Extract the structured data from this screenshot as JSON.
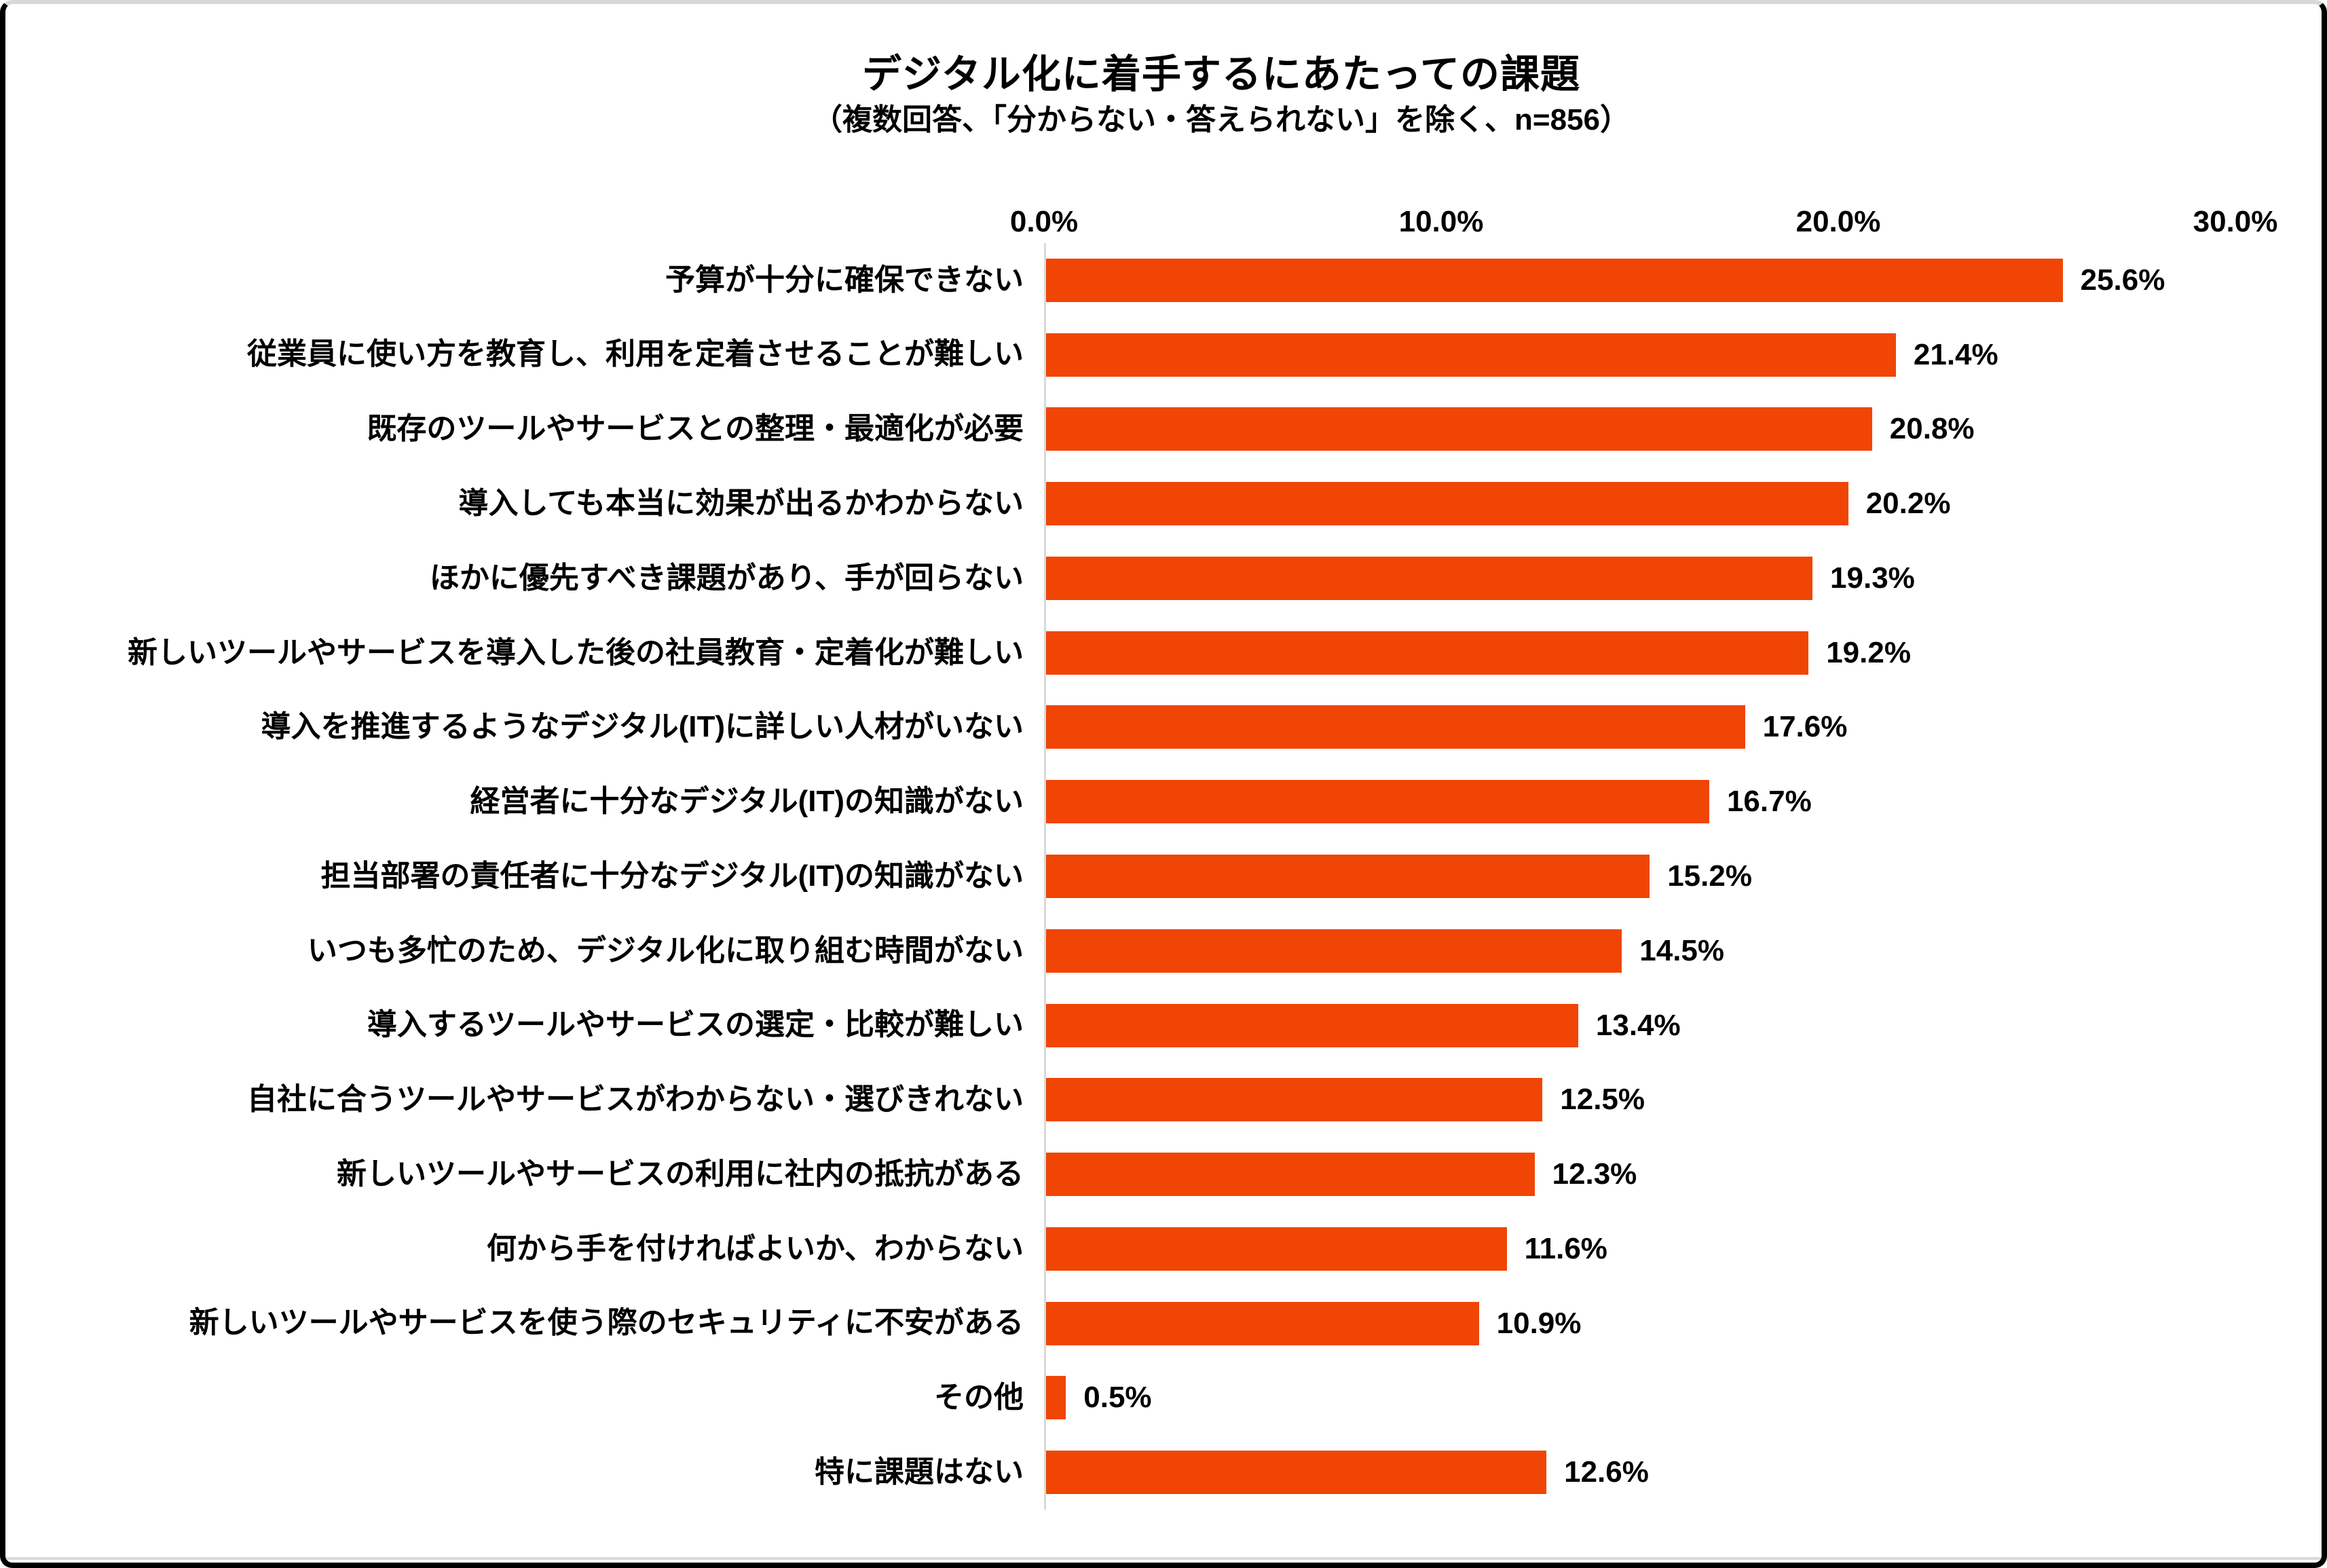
{
  "chart_data": {
    "type": "bar",
    "orientation": "horizontal",
    "title": "デジタル化に着手するにあたっての課題",
    "subtitle": "（複数回答、「分からない・答えられない」を除く、n=856）",
    "categories": [
      "予算が十分に確保できない",
      "従業員に使い方を教育し、利用を定着させることが難しい",
      "既存のツールやサービスとの整理・最適化が必要",
      "導入しても本当に効果が出るかわからない",
      "ほかに優先すべき課題があり、手が回らない",
      "新しいツールやサービスを導入した後の社員教育・定着化が難しい",
      "導入を推進するようなデジタル(IT)に詳しい人材がいない",
      "経営者に十分なデジタル(IT)の知識がない",
      "担当部署の責任者に十分なデジタル(IT)の知識がない",
      "いつも多忙のため、デジタル化に取り組む時間がない",
      "導入するツールやサービスの選定・比較が難しい",
      "自社に合うツールやサービスがわからない・選びきれない",
      "新しいツールやサービスの利用に社内の抵抗がある",
      "何から手を付ければよいか、わからない",
      "新しいツールやサービスを使う際のセキュリティに不安がある",
      "その他",
      "特に課題はない"
    ],
    "values": [
      25.6,
      21.4,
      20.8,
      20.2,
      19.3,
      19.2,
      17.6,
      16.7,
      15.2,
      14.5,
      13.4,
      12.5,
      12.3,
      11.6,
      10.9,
      0.5,
      12.6
    ],
    "value_labels": [
      "25.6%",
      "21.4%",
      "20.8%",
      "20.2%",
      "19.3%",
      "19.2%",
      "17.6%",
      "16.7%",
      "15.2%",
      "14.5%",
      "13.4%",
      "12.5%",
      "12.3%",
      "11.6%",
      "10.9%",
      "0.5%",
      "12.6%"
    ],
    "xlabel": "",
    "ylabel": "",
    "xlim": [
      0,
      30
    ],
    "x_ticks": [
      "0.0%",
      "10.0%",
      "20.0%",
      "30.0%"
    ],
    "grid": false,
    "legend": false,
    "bar_color": "#f04505",
    "axis_line_color": "#d9d9d9"
  }
}
